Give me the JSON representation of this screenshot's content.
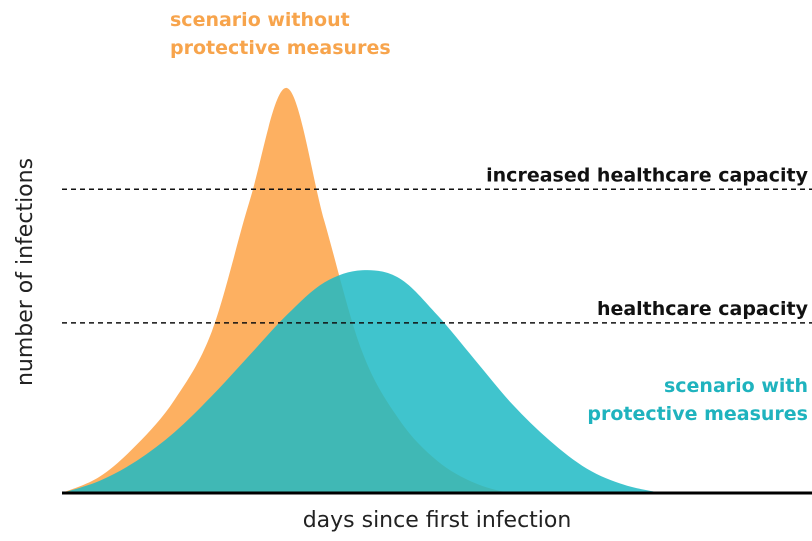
{
  "chart_data": {
    "type": "area",
    "xlabel": "days since first infection",
    "ylabel": "number of infections",
    "x": [
      0,
      5,
      10,
      15,
      20,
      25,
      30,
      35,
      40,
      45,
      50,
      55,
      60,
      65,
      70,
      75,
      80
    ],
    "xlim": [
      0,
      100
    ],
    "ylim": [
      0,
      100
    ],
    "series": [
      {
        "name": "scenario without protective measures",
        "color": "#fdb061",
        "label_color": "#f7a44c",
        "values": [
          0,
          4,
          12,
          23,
          40,
          72,
          100,
          67,
          35,
          18,
          8,
          2.5,
          0,
          0,
          0,
          0,
          0
        ]
      },
      {
        "name": "scenario with protective measures",
        "color": "#1ebac4",
        "label_color": "#1fb3be",
        "values": [
          0,
          3,
          8,
          15,
          24,
          34,
          44,
          52,
          55,
          53,
          44,
          33,
          22,
          13,
          6,
          2,
          0
        ]
      }
    ],
    "reference_lines": [
      {
        "value": 75,
        "label": "increased healthcare capacity"
      },
      {
        "value": 42,
        "label": "healthcare capacity"
      }
    ]
  }
}
